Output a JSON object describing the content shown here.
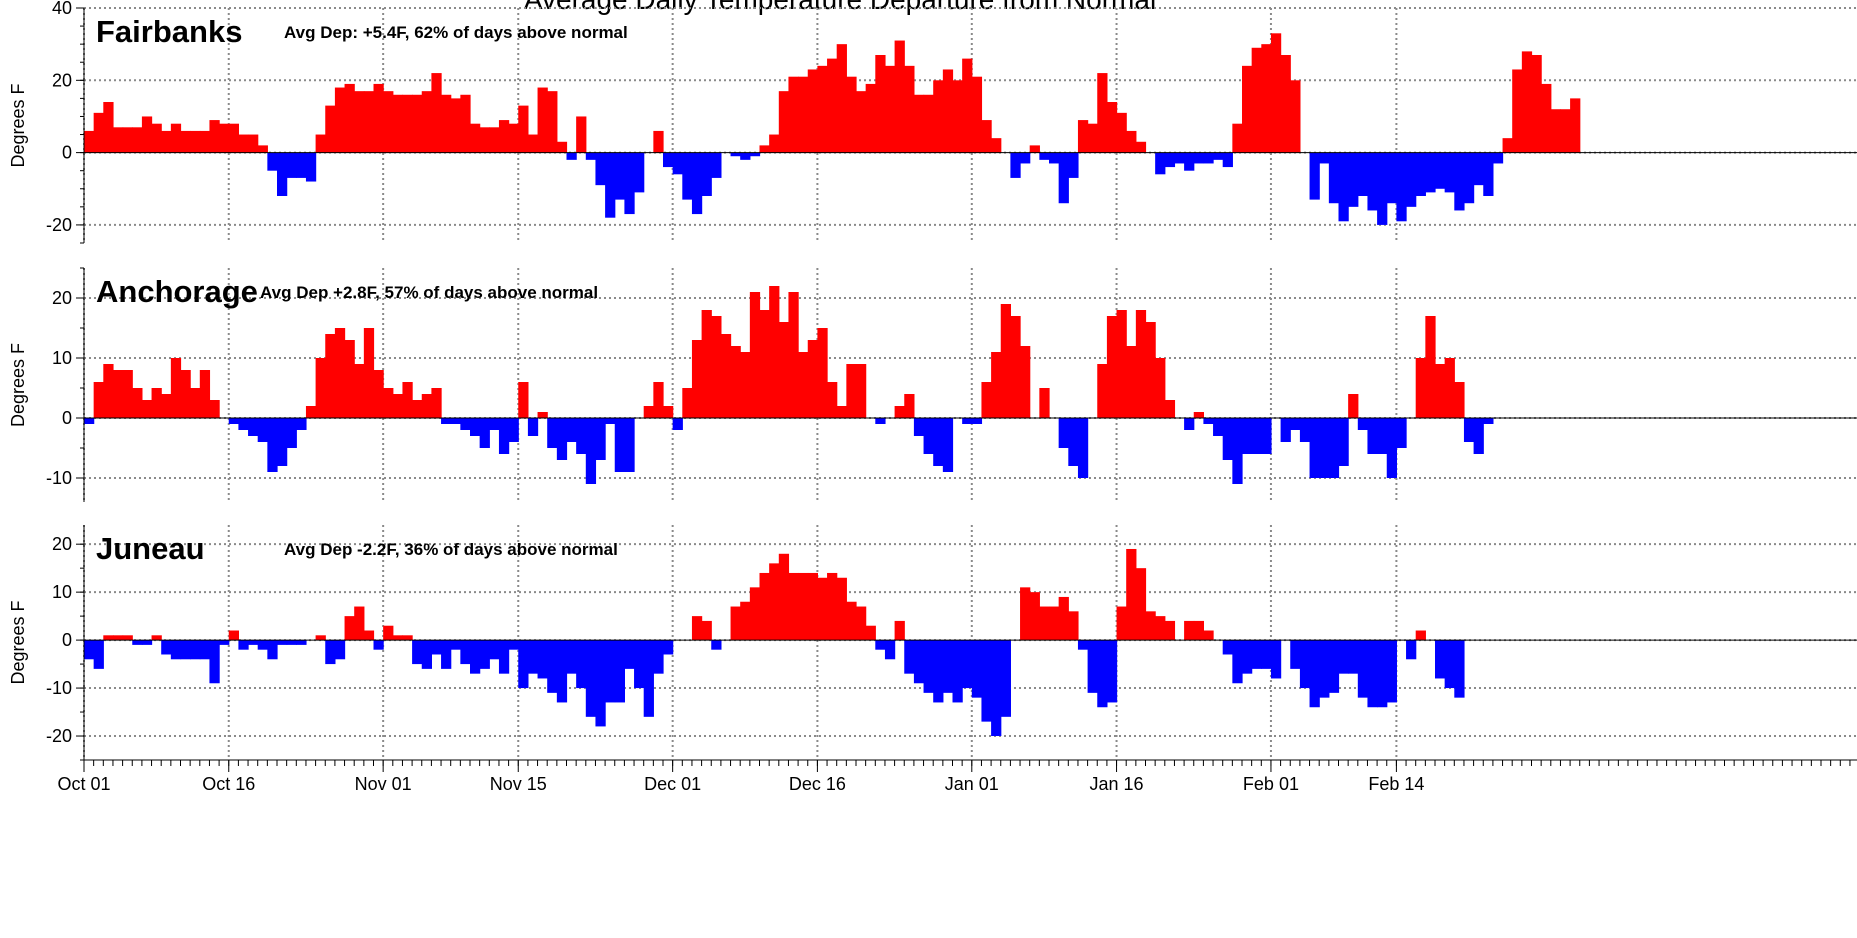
{
  "chart_data": {
    "type": "bar",
    "title": "Average Daily Temperature Departure from Normal",
    "x_tick_labels": [
      "Oct 01",
      "Oct 16",
      "Nov 01",
      "Nov 15",
      "Dec 01",
      "Dec 16",
      "Jan 01",
      "Jan 16",
      "Feb 01",
      "Feb 14"
    ],
    "positive_color": "#ff0000",
    "negative_color": "#0000ff",
    "grid": true,
    "panels": [
      {
        "name": "Fairbanks",
        "annotation": "Avg Dep: +5.4F, 62% of days above normal",
        "ylabel": "Degrees F",
        "ylim": [
          -25,
          40
        ],
        "yticks": [
          "40",
          "20",
          "0",
          "-20"
        ],
        "start_date": "Oct 01",
        "values": [
          6,
          11,
          14,
          7,
          7,
          7,
          10,
          8,
          6,
          8,
          6,
          6,
          6,
          9,
          8,
          8,
          5,
          5,
          2,
          -5,
          -12,
          -7,
          -7,
          -8,
          5,
          13,
          18,
          19,
          17,
          17,
          19,
          17,
          16,
          16,
          16,
          17,
          22,
          16,
          15,
          16,
          8,
          7,
          7,
          9,
          8,
          13,
          5,
          18,
          17,
          3,
          -2,
          10,
          -2,
          -9,
          -18,
          -13,
          -17,
          -11,
          0,
          6,
          -4,
          -6,
          -13,
          -17,
          -12,
          -7,
          0,
          -1,
          -2,
          -1,
          2,
          5,
          17,
          21,
          21,
          23,
          24,
          26,
          30,
          21,
          17,
          19,
          27,
          24,
          31,
          24,
          16,
          16,
          20,
          23,
          20,
          26,
          21,
          9,
          4,
          0,
          -7,
          -3,
          2,
          -2,
          -3,
          -14,
          -7,
          9,
          8,
          22,
          14,
          11,
          6,
          3,
          0,
          -6,
          -4,
          -3,
          -5,
          -3,
          -3,
          -2,
          -4,
          8,
          24,
          29,
          30,
          33,
          27,
          20,
          0,
          -13,
          -3,
          -14,
          -19,
          -15,
          -12,
          -16,
          -20,
          -14,
          -19,
          -15,
          -12,
          -11,
          -10,
          -11,
          -16,
          -14,
          -9,
          -12,
          -3,
          4,
          23,
          28,
          27,
          19,
          12,
          12,
          15
        ]
      },
      {
        "name": "Anchorage",
        "annotation": "Avg Dep +2.8F, 57% of days above normal",
        "ylabel": "Degrees F",
        "ylim": [
          -14,
          25
        ],
        "yticks": [
          "20",
          "10",
          "0",
          "-10"
        ],
        "start_date": "Oct 01",
        "values": [
          -1,
          6,
          9,
          8,
          8,
          5,
          3,
          5,
          4,
          10,
          8,
          5,
          8,
          3,
          0,
          -1,
          -2,
          -3,
          -4,
          -9,
          -8,
          -5,
          -2,
          2,
          10,
          14,
          15,
          13,
          9,
          15,
          8,
          5,
          4,
          6,
          3,
          4,
          5,
          -1,
          -1,
          -2,
          -3,
          -5,
          -2,
          -6,
          -4,
          6,
          -3,
          1,
          -5,
          -7,
          -4,
          -6,
          -11,
          -7,
          -1,
          -9,
          -9,
          0,
          2,
          6,
          2,
          -2,
          5,
          13,
          18,
          17,
          14,
          12,
          11,
          21,
          18,
          22,
          16,
          21,
          11,
          13,
          15,
          6,
          2,
          9,
          9,
          0,
          -1,
          0,
          2,
          4,
          -3,
          -6,
          -8,
          -9,
          0,
          -1,
          -1,
          6,
          11,
          19,
          17,
          12,
          0,
          5,
          0,
          -5,
          -8,
          -10,
          0,
          9,
          17,
          18,
          12,
          18,
          16,
          10,
          3,
          0,
          -2,
          1,
          -1,
          -3,
          -7,
          -11,
          -6,
          -6,
          -6,
          0,
          -4,
          -2,
          -4,
          -10,
          -10,
          -10,
          -8,
          4,
          -2,
          -6,
          -6,
          -10,
          -5,
          0,
          10,
          17,
          9,
          10,
          6,
          -4,
          -6,
          -1
        ]
      },
      {
        "name": "Juneau",
        "annotation": "Avg Dep -2.2F, 36% of days above normal",
        "ylabel": "Degrees F",
        "ylim": [
          -25,
          24
        ],
        "yticks": [
          "20",
          "10",
          "0",
          "-10",
          "-20"
        ],
        "start_date": "Oct 01",
        "values": [
          -4,
          -6,
          1,
          1,
          1,
          -1,
          -1,
          1,
          -3,
          -4,
          -4,
          -4,
          -4,
          -9,
          -1,
          2,
          -2,
          -1,
          -2,
          -4,
          -1,
          -1,
          -1,
          0,
          1,
          -5,
          -4,
          5,
          7,
          2,
          -2,
          3,
          1,
          1,
          -5,
          -6,
          -3,
          -6,
          -2,
          -5,
          -7,
          -6,
          -4,
          -7,
          -2,
          -10,
          -7,
          -8,
          -11,
          -13,
          -7,
          -10,
          -16,
          -18,
          -13,
          -13,
          -6,
          -10,
          -16,
          -7,
          -3,
          0,
          0,
          5,
          4,
          -2,
          0,
          7,
          8,
          11,
          14,
          16,
          18,
          14,
          14,
          14,
          13,
          14,
          13,
          8,
          7,
          3,
          -2,
          -4,
          4,
          -7,
          -9,
          -11,
          -13,
          -11,
          -13,
          -10,
          -12,
          -17,
          -20,
          -16,
          0,
          11,
          10,
          7,
          7,
          9,
          6,
          -2,
          -11,
          -14,
          -13,
          7,
          19,
          15,
          6,
          5,
          4,
          0,
          4,
          4,
          2,
          0,
          -3,
          -9,
          -7,
          -6,
          -6,
          -8,
          0,
          -6,
          -10,
          -14,
          -12,
          -11,
          -7,
          -7,
          -12,
          -14,
          -14,
          -13,
          0,
          -4,
          2,
          0,
          -8,
          -10,
          -12
        ]
      }
    ]
  }
}
